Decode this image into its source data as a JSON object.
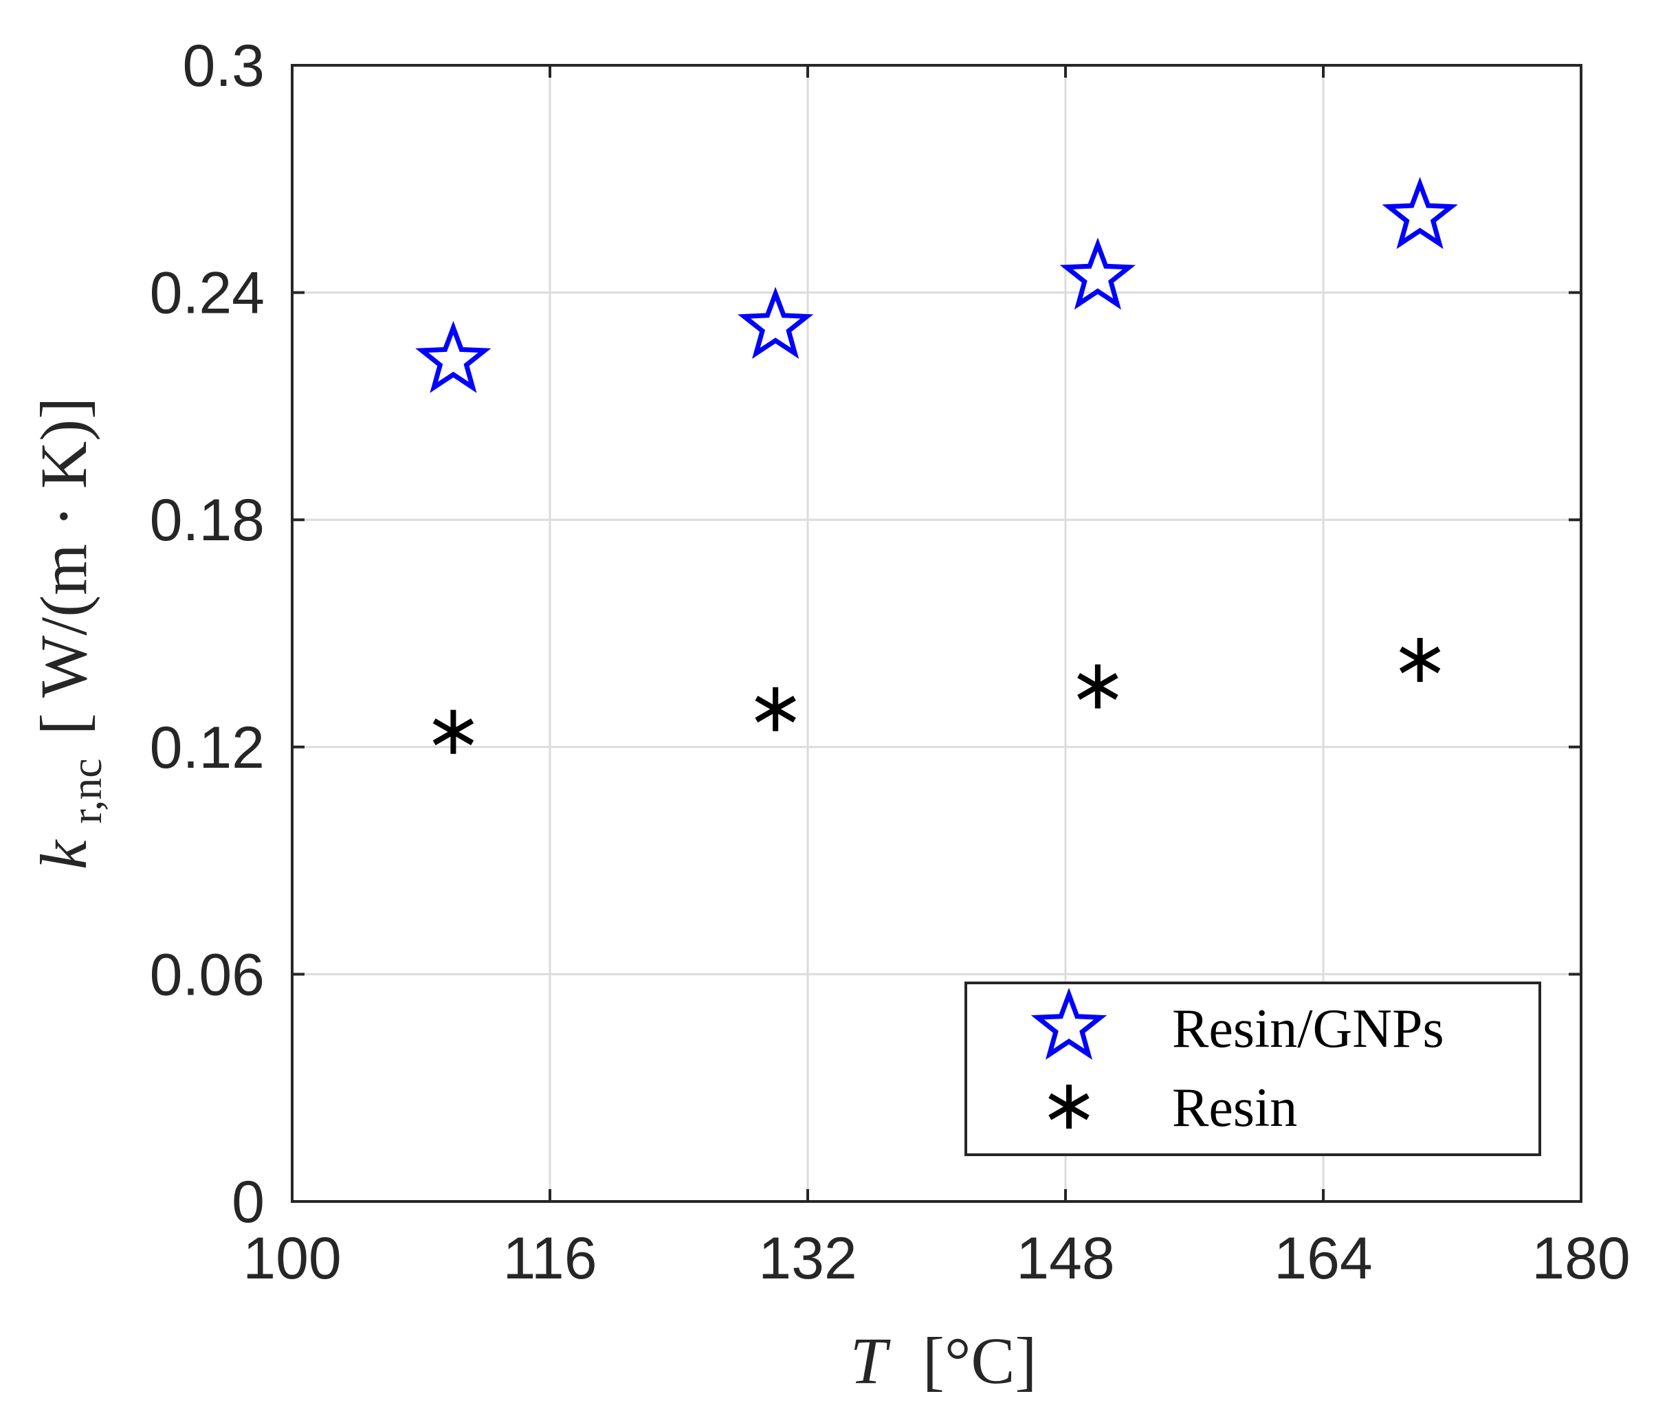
{
  "chart_data": {
    "type": "scatter",
    "xlabel": {
      "var": "T",
      "unit": "[°C]"
    },
    "ylabel": {
      "var": "k",
      "sub": "r,nc",
      "unit": "[ W/(m · K)]"
    },
    "xlim": [
      100,
      180
    ],
    "ylim": [
      0,
      0.3
    ],
    "xticks": [
      "100",
      "116",
      "132",
      "148",
      "164",
      "180"
    ],
    "yticks": [
      "0",
      "0.06",
      "0.12",
      "0.18",
      "0.24",
      "0.3"
    ],
    "grid": true,
    "legend_position": "bottom-right",
    "series": [
      {
        "name": "Resin/GNPs",
        "marker": "star",
        "color": "#0000ff",
        "x": [
          110,
          130,
          150,
          170
        ],
        "y": [
          0.222,
          0.231,
          0.244,
          0.26
        ]
      },
      {
        "name": "Resin",
        "marker": "asterisk",
        "color": "#000000",
        "x": [
          110,
          130,
          150,
          170
        ],
        "y": [
          0.124,
          0.13,
          0.136,
          0.143
        ]
      }
    ]
  }
}
